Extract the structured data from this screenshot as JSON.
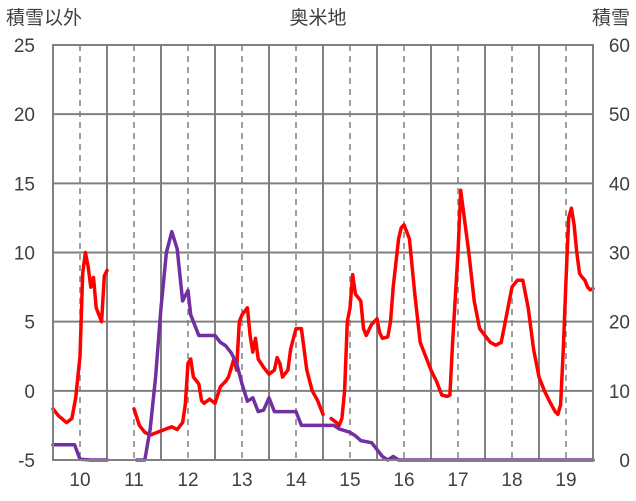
{
  "chart_data": {
    "type": "line",
    "title": "奥米地",
    "ylabel_left": "積雪以外",
    "ylabel_right": "積雪",
    "ylim_left": [
      -5,
      25
    ],
    "yticks_left": [
      "25",
      "20",
      "15",
      "10",
      "5",
      "0",
      "-5"
    ],
    "ylim_right": [
      0,
      60
    ],
    "yticks_right": [
      "60",
      "50",
      "40",
      "30",
      "20",
      "10",
      "0"
    ],
    "xlim": [
      9.5,
      19.5
    ],
    "xtick_labels": [
      "10",
      "11",
      "12",
      "13",
      "14",
      "15",
      "16",
      "17",
      "18",
      "19"
    ],
    "grid": true,
    "legend": "none",
    "series": [
      {
        "axis": "left",
        "color": "#ff0000",
        "segments": [
          [
            [
              9.5,
              -1.3
            ],
            [
              9.6,
              -1.8
            ],
            [
              9.75,
              -2.3
            ],
            [
              9.85,
              -2.0
            ],
            [
              9.92,
              -0.5
            ],
            [
              10.0,
              2.5
            ],
            [
              10.05,
              8.5
            ],
            [
              10.1,
              10.0
            ],
            [
              10.15,
              9.0
            ],
            [
              10.2,
              7.5
            ],
            [
              10.25,
              8.2
            ],
            [
              10.3,
              6.0
            ],
            [
              10.4,
              5.0
            ],
            [
              10.45,
              8.3
            ],
            [
              10.5,
              8.7
            ]
          ],
          [
            [
              11.0,
              -1.3
            ],
            [
              11.1,
              -2.5
            ],
            [
              11.2,
              -3.0
            ],
            [
              11.3,
              -3.2
            ],
            [
              11.5,
              -2.9
            ],
            [
              11.7,
              -2.6
            ],
            [
              11.8,
              -2.8
            ],
            [
              11.9,
              -2.3
            ],
            [
              11.95,
              -1.0
            ],
            [
              12.0,
              2.0
            ],
            [
              12.05,
              2.3
            ],
            [
              12.1,
              1.0
            ],
            [
              12.2,
              0.5
            ],
            [
              12.25,
              -0.7
            ],
            [
              12.3,
              -0.9
            ],
            [
              12.4,
              -0.6
            ],
            [
              12.5,
              -0.9
            ],
            [
              12.6,
              0.3
            ],
            [
              12.7,
              0.7
            ],
            [
              12.75,
              1.0
            ],
            [
              12.85,
              2.3
            ],
            [
              12.9,
              1.5
            ],
            [
              12.95,
              5.0
            ],
            [
              13.0,
              5.5
            ],
            [
              13.1,
              6.0
            ],
            [
              13.15,
              4.0
            ],
            [
              13.2,
              2.8
            ],
            [
              13.25,
              3.8
            ],
            [
              13.3,
              2.3
            ],
            [
              13.4,
              1.7
            ],
            [
              13.5,
              1.2
            ],
            [
              13.6,
              1.5
            ],
            [
              13.65,
              2.4
            ],
            [
              13.7,
              2.0
            ],
            [
              13.75,
              1.0
            ],
            [
              13.85,
              1.5
            ],
            [
              13.9,
              3.0
            ],
            [
              14.0,
              4.5
            ],
            [
              14.1,
              4.5
            ],
            [
              14.15,
              3.0
            ],
            [
              14.2,
              1.5
            ],
            [
              14.3,
              0.0
            ],
            [
              14.4,
              -0.7
            ],
            [
              14.5,
              -1.7
            ]
          ],
          [
            [
              14.65,
              -2.0
            ],
            [
              14.75,
              -2.3
            ],
            [
              14.8,
              -2.5
            ],
            [
              14.85,
              -2.0
            ],
            [
              14.9,
              0.0
            ],
            [
              14.95,
              5.0
            ],
            [
              15.0,
              6.0
            ],
            [
              15.05,
              8.4
            ],
            [
              15.1,
              7.0
            ],
            [
              15.2,
              6.5
            ],
            [
              15.25,
              4.5
            ],
            [
              15.3,
              4.0
            ],
            [
              15.4,
              4.8
            ],
            [
              15.5,
              5.2
            ],
            [
              15.55,
              4.2
            ],
            [
              15.6,
              3.8
            ],
            [
              15.7,
              3.9
            ],
            [
              15.75,
              5.0
            ],
            [
              15.8,
              7.5
            ],
            [
              15.9,
              11.0
            ],
            [
              15.95,
              11.8
            ],
            [
              16.0,
              12.0
            ],
            [
              16.1,
              11.0
            ],
            [
              16.2,
              7.0
            ],
            [
              16.3,
              3.5
            ],
            [
              16.4,
              2.5
            ],
            [
              16.5,
              1.5
            ],
            [
              16.6,
              0.7
            ],
            [
              16.7,
              -0.3
            ],
            [
              16.8,
              -0.4
            ],
            [
              16.85,
              -0.3
            ],
            [
              16.9,
              3.5
            ],
            [
              17.0,
              10.0
            ],
            [
              17.05,
              14.5
            ],
            [
              17.1,
              13.0
            ],
            [
              17.2,
              10.0
            ],
            [
              17.3,
              6.5
            ],
            [
              17.4,
              4.5
            ],
            [
              17.5,
              4.0
            ],
            [
              17.6,
              3.5
            ],
            [
              17.7,
              3.3
            ],
            [
              17.8,
              3.5
            ],
            [
              17.9,
              5.5
            ],
            [
              18.0,
              7.5
            ],
            [
              18.1,
              8.0
            ],
            [
              18.2,
              8.0
            ],
            [
              18.3,
              6.0
            ],
            [
              18.4,
              3.0
            ],
            [
              18.5,
              1.0
            ],
            [
              18.6,
              0.0
            ],
            [
              18.7,
              -0.8
            ],
            [
              18.8,
              -1.5
            ],
            [
              18.85,
              -1.7
            ],
            [
              18.9,
              -1.0
            ],
            [
              18.95,
              3.0
            ],
            [
              19.0,
              8.0
            ],
            [
              19.05,
              12.5
            ],
            [
              19.1,
              13.2
            ],
            [
              19.15,
              12.0
            ],
            [
              19.2,
              10.0
            ],
            [
              19.25,
              8.5
            ],
            [
              19.3,
              8.2
            ],
            [
              19.35,
              8.0
            ],
            [
              19.4,
              7.5
            ],
            [
              19.45,
              7.3
            ],
            [
              19.5,
              7.4
            ]
          ]
        ]
      },
      {
        "axis": "right",
        "color": "#7030a0",
        "segments": [
          [
            [
              9.5,
              2.2
            ],
            [
              9.7,
              2.2
            ],
            [
              9.75,
              2.2
            ],
            [
              9.9,
              2.2
            ],
            [
              10.0,
              0.1
            ],
            [
              10.2,
              0.0
            ],
            [
              10.5,
              0.0
            ]
          ],
          [
            [
              11.05,
              0.0
            ],
            [
              11.2,
              0.0
            ],
            [
              11.3,
              4.5
            ],
            [
              11.4,
              12.0
            ],
            [
              11.5,
              22.0
            ],
            [
              11.6,
              30.0
            ],
            [
              11.7,
              33.0
            ],
            [
              11.8,
              30.5
            ],
            [
              11.9,
              23.0
            ],
            [
              12.0,
              24.5
            ],
            [
              12.05,
              21.0
            ],
            [
              12.1,
              20.0
            ],
            [
              12.2,
              18.0
            ],
            [
              12.5,
              18.0
            ],
            [
              12.6,
              17.0
            ],
            [
              12.7,
              16.5
            ],
            [
              12.8,
              15.5
            ],
            [
              12.9,
              14.0
            ],
            [
              13.0,
              11.0
            ],
            [
              13.1,
              8.5
            ],
            [
              13.2,
              9.0
            ],
            [
              13.3,
              7.0
            ],
            [
              13.4,
              7.2
            ],
            [
              13.5,
              9.0
            ],
            [
              13.6,
              7.0
            ],
            [
              14.0,
              7.0
            ],
            [
              14.1,
              5.0
            ],
            [
              14.5,
              5.0
            ],
            [
              14.7,
              5.0
            ],
            [
              14.8,
              4.5
            ],
            [
              15.0,
              4.0
            ],
            [
              15.1,
              3.5
            ],
            [
              15.2,
              2.8
            ],
            [
              15.4,
              2.5
            ],
            [
              15.5,
              1.5
            ],
            [
              15.6,
              0.5
            ],
            [
              15.7,
              0.0
            ],
            [
              15.8,
              0.5
            ],
            [
              15.9,
              0.0
            ],
            [
              16.2,
              0.0
            ],
            [
              16.8,
              0.0
            ],
            [
              17.5,
              0.0
            ],
            [
              18.5,
              0.0
            ],
            [
              19.5,
              0.0
            ]
          ]
        ]
      }
    ]
  }
}
